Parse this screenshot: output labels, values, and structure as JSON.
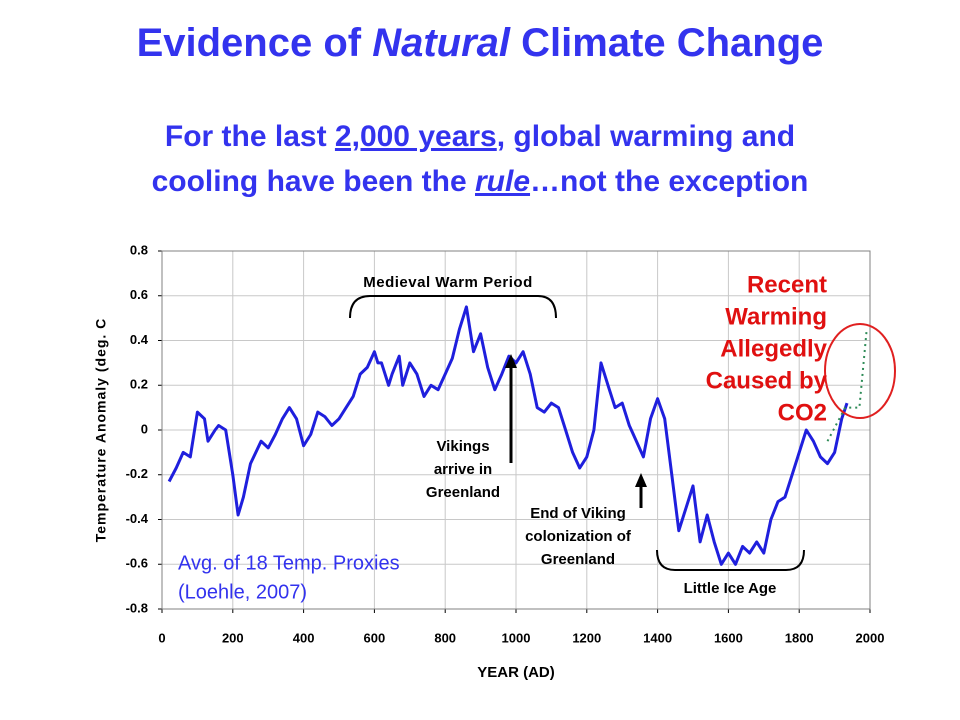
{
  "chart_data": {
    "type": "line",
    "title_parts": [
      "Evidence of ",
      "Natural",
      " Climate Change"
    ],
    "subtitle_lines": [
      [
        "For the last ",
        "2,000 years",
        ", global warming and"
      ],
      [
        "cooling have been the ",
        "rule",
        "…not the exception"
      ]
    ],
    "xlabel": "YEAR (AD)",
    "ylabel": "Temperature Anomaly (deg. C",
    "annotations": {
      "medieval": [
        "Medieval Warm Period"
      ],
      "vikings": [
        "Vikings",
        "arrive in",
        "Greenland"
      ],
      "end_viking": [
        "End of Viking",
        "colonization of",
        "Greenland"
      ],
      "little_ice_age": [
        "Little Ice Age"
      ],
      "recent": [
        "Recent",
        "Warming",
        "Allegedly",
        "Caused by",
        "CO2"
      ],
      "source": [
        "Avg. of 18 Temp. Proxies",
        "(Loehle, 2007)"
      ]
    },
    "series": [
      {
        "color": "#1f1fdd",
        "style": "solid",
        "x": [
          20,
          40,
          60,
          80,
          100,
          120,
          130,
          150,
          160,
          180,
          200,
          215,
          230,
          250,
          280,
          300,
          320,
          340,
          360,
          380,
          400,
          420,
          440,
          460,
          480,
          500,
          520,
          540,
          560,
          580,
          600,
          610,
          620,
          640,
          650,
          670,
          680,
          700,
          720,
          740,
          760,
          780,
          800,
          820,
          840,
          860,
          880,
          900,
          920,
          940,
          960,
          980,
          1000,
          1020,
          1040,
          1060,
          1080,
          1100,
          1120,
          1140,
          1160,
          1180,
          1200,
          1220,
          1240,
          1260,
          1280,
          1300,
          1320,
          1340,
          1360,
          1380,
          1400,
          1420,
          1440,
          1460,
          1480,
          1500,
          1520,
          1540,
          1560,
          1580,
          1600,
          1620,
          1640,
          1660,
          1680,
          1700,
          1720,
          1740,
          1760,
          1780,
          1800,
          1820,
          1840,
          1860,
          1880,
          1900,
          1920,
          1935
        ],
        "values": [
          -0.23,
          -0.17,
          -0.1,
          -0.12,
          0.08,
          0.05,
          -0.05,
          0.0,
          0.02,
          0.0,
          -0.2,
          -0.38,
          -0.3,
          -0.15,
          -0.05,
          -0.08,
          -0.02,
          0.05,
          0.1,
          0.05,
          -0.07,
          -0.02,
          0.08,
          0.06,
          0.02,
          0.05,
          0.1,
          0.15,
          0.25,
          0.28,
          0.35,
          0.3,
          0.3,
          0.2,
          0.25,
          0.33,
          0.2,
          0.3,
          0.25,
          0.15,
          0.2,
          0.18,
          0.25,
          0.32,
          0.45,
          0.55,
          0.35,
          0.43,
          0.28,
          0.18,
          0.25,
          0.33,
          0.3,
          0.35,
          0.25,
          0.1,
          0.08,
          0.12,
          0.1,
          0.0,
          -0.1,
          -0.17,
          -0.12,
          0.0,
          0.3,
          0.2,
          0.1,
          0.12,
          0.02,
          -0.05,
          -0.12,
          0.05,
          0.14,
          0.05,
          -0.2,
          -0.45,
          -0.35,
          -0.25,
          -0.5,
          -0.38,
          -0.5,
          -0.6,
          -0.55,
          -0.6,
          -0.52,
          -0.55,
          -0.5,
          -0.55,
          -0.4,
          -0.32,
          -0.3,
          -0.2,
          -0.1,
          0.0,
          -0.05,
          -0.12,
          -0.15,
          -0.1,
          0.05,
          0.12
        ]
      },
      {
        "color": "#2e8b57",
        "style": "dotted",
        "x": [
          1880,
          1930,
          1970,
          1990
        ],
        "values": [
          -0.05,
          0.1,
          0.1,
          0.44
        ]
      }
    ],
    "xlim": [
      0,
      2000
    ],
    "xticks": [
      0,
      200,
      400,
      600,
      800,
      1000,
      1200,
      1400,
      1600,
      1800,
      2000
    ],
    "ylim": [
      -0.8,
      0.8
    ],
    "yticks": [
      -0.8,
      -0.6,
      -0.4,
      -0.2,
      0,
      0.2,
      0.4,
      0.6,
      0.8
    ],
    "grid": true
  }
}
